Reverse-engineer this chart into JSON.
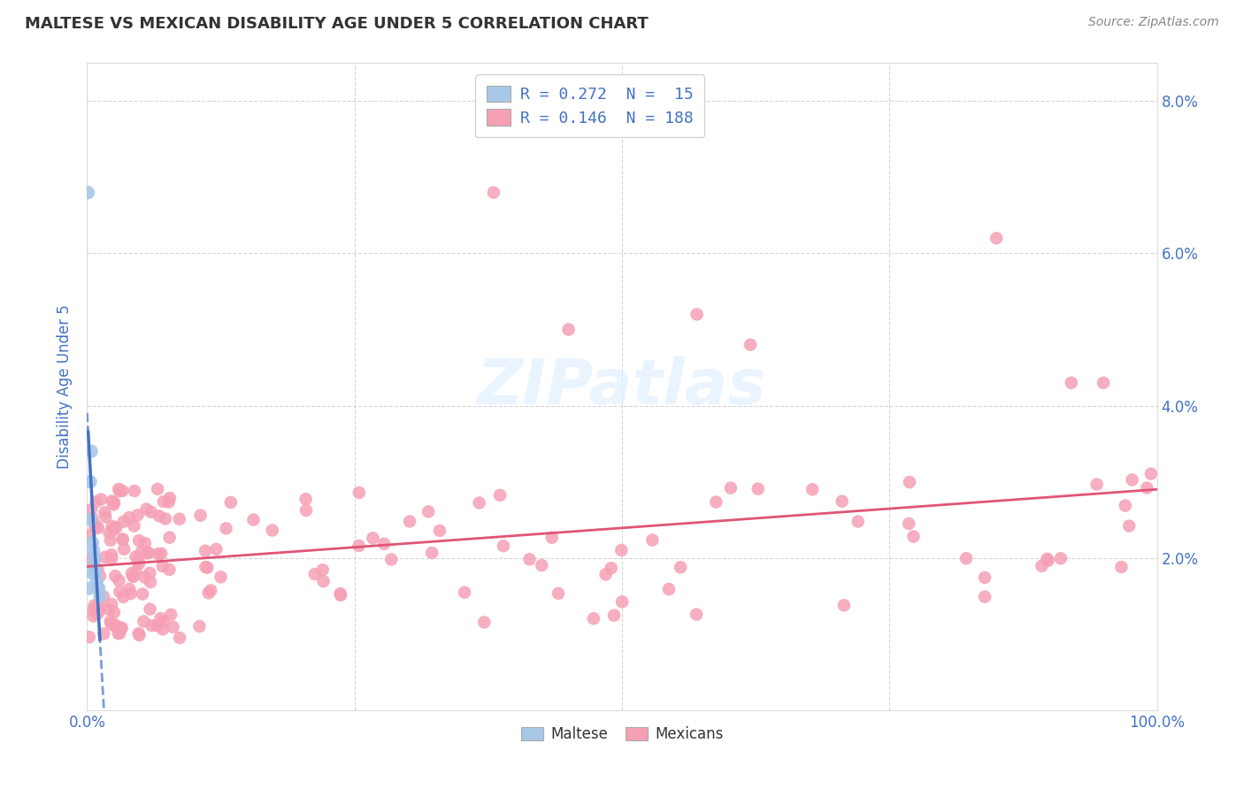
{
  "title": "MALTESE VS MEXICAN DISABILITY AGE UNDER 5 CORRELATION CHART",
  "source": "Source: ZipAtlas.com",
  "ylabel": "Disability Age Under 5",
  "xlim": [
    0,
    1.0
  ],
  "ylim": [
    0,
    0.085
  ],
  "xtick_vals": [
    0,
    0.25,
    0.5,
    0.75,
    1.0
  ],
  "xtick_labels": [
    "0.0%",
    "",
    "",
    "",
    "100.0%"
  ],
  "ytick_vals": [
    0,
    0.02,
    0.04,
    0.06,
    0.08
  ],
  "ytick_labels_right": [
    "",
    "2.0%",
    "4.0%",
    "6.0%",
    "8.0%"
  ],
  "maltese_R": 0.272,
  "maltese_N": 15,
  "mexican_R": 0.146,
  "mexican_N": 188,
  "maltese_color": "#a8c8e8",
  "mexican_color": "#f5a0b5",
  "maltese_trend_color": "#4472c4",
  "mexican_trend_color": "#e05575",
  "bg_color": "#ffffff",
  "grid_color": "#cccccc",
  "watermark_text": "ZIPatlas",
  "legend1_label1": "R = 0.272  N =  15",
  "legend1_label2": "R = 0.146  N = 188",
  "legend2_labels": [
    "Maltese",
    "Mexicans"
  ],
  "title_color": "#333333",
  "source_color": "#888888",
  "axis_label_color": "#4472c4",
  "tick_color": "#4472c4"
}
